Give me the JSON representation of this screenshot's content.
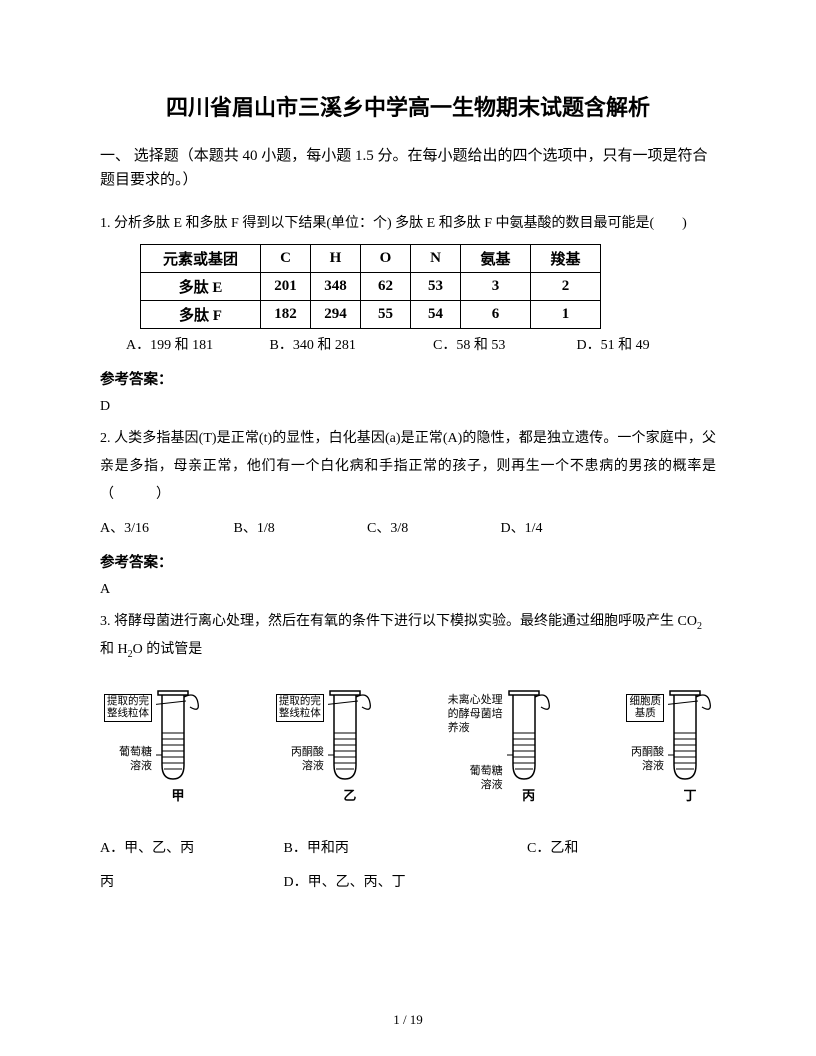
{
  "title": "四川省眉山市三溪乡中学高一生物期末试题含解析",
  "section": "一、 选择题（本题共 40 小题，每小题 1.5 分。在每小题给出的四个选项中，只有一项是符合题目要求的。）",
  "q1": {
    "stem": "1. 分析多肽 E 和多肽 F 得到以下结果(单位：个)  多肽 E 和多肽 F 中氨基酸的数目最可能是(　　)",
    "table": {
      "headers": [
        "元素或基团",
        "C",
        "H",
        "O",
        "N",
        "氨基",
        "羧基"
      ],
      "rows": [
        [
          "多肽 E",
          "201",
          "348",
          "62",
          "53",
          "3",
          "2"
        ],
        [
          "多肽 F",
          "182",
          "294",
          "55",
          "54",
          "6",
          "1"
        ]
      ]
    },
    "opts": {
      "A": "A．199 和 181",
      "B": "B．340 和 281",
      "C": "C．58 和 53",
      "D": "D．51 和 49"
    },
    "answer_label": "参考答案：",
    "answer": "D"
  },
  "q2": {
    "stem": "2. 人类多指基因(T)是正常(t)的显性，白化基因(a)是正常(A)的隐性，都是独立遗传。一个家庭中，父亲是多指，母亲正常，他们有一个白化病和手指正常的孩子，则再生一个不患病的男孩的概率是 （　　　）",
    "opts": {
      "A": "A、3/16",
      "B": "B、1/8",
      "C": "C、3/8",
      "D": "D、1/4"
    },
    "answer_label": "参考答案：",
    "answer": "A"
  },
  "q3": {
    "stem_a": "3. 将酵母菌进行离心处理，然后在有氧的条件下进行以下模拟实验。最终能通过细胞呼吸产生 CO",
    "stem_b": " 和 H",
    "stem_c": "O 的试管是",
    "tubes": [
      {
        "top": "提取的完\n整线粒体",
        "bottom": "葡萄糖\n溶液",
        "cap": "甲"
      },
      {
        "top": "提取的完\n整线粒体",
        "bottom": "丙酮酸\n溶液",
        "cap": "乙"
      },
      {
        "top_plain": "未离心处理\n的酵母菌培\n养液",
        "bottom": "葡萄糖\n溶液",
        "cap": "丙"
      },
      {
        "top": "细胞质\n基质",
        "bottom": "丙酮酸\n溶液",
        "cap": "丁"
      }
    ],
    "opts": {
      "A": "A．甲、乙、丙",
      "B": "B．甲和丙",
      "C": "C．乙和",
      "Cline2": "丙",
      "D": "D．甲、乙、丙、丁"
    }
  },
  "page": "1 / 19"
}
